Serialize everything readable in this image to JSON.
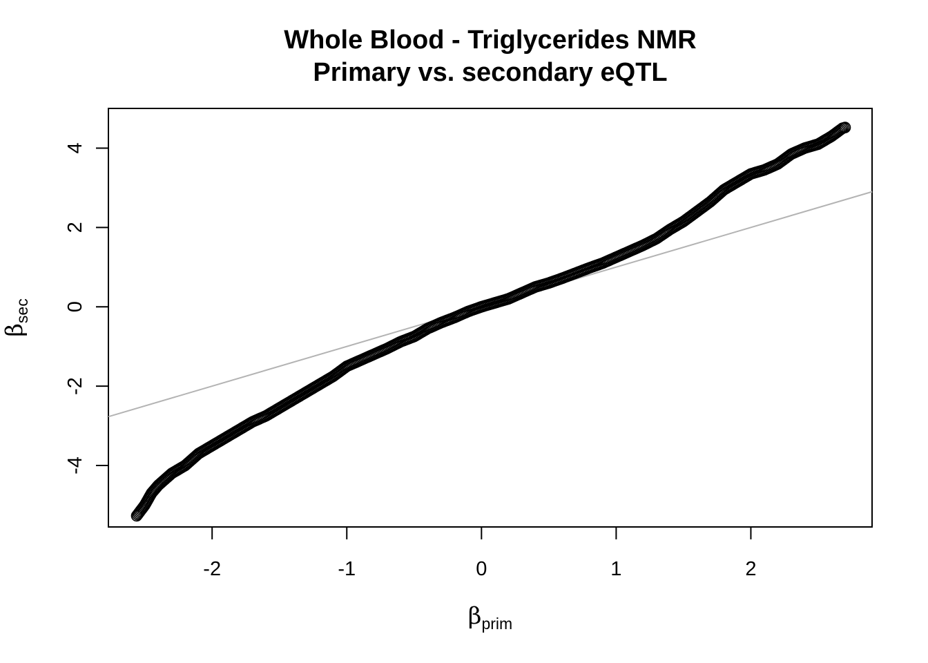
{
  "chart_data": {
    "type": "scatter",
    "title": "Whole Blood - Triglycerides NMR",
    "subtitle": "Primary vs. secondary eQTL",
    "xlabel": {
      "symbol": "β",
      "subscript": "prim"
    },
    "ylabel": {
      "symbol": "β",
      "subscript": "sec"
    },
    "xlim": [
      -2.77,
      2.9
    ],
    "ylim": [
      -5.55,
      5.0
    ],
    "x_ticks": [
      -2,
      -1,
      0,
      1,
      2
    ],
    "x_tick_labels": [
      "-2",
      "-1",
      "0",
      "1",
      "2"
    ],
    "y_ticks": [
      -4,
      -2,
      0,
      2,
      4
    ],
    "y_tick_labels": [
      "-4",
      "-2",
      "0",
      "2",
      "4"
    ],
    "grid": false,
    "legend": "none",
    "reference_line": {
      "intercept": 0,
      "slope": 1,
      "color": "#b3b3b3"
    },
    "marker": {
      "shape": "open-circle",
      "color": "#000000"
    },
    "trend_points": [
      [
        -2.56,
        -5.27
      ],
      [
        -2.5,
        -5.0
      ],
      [
        -2.45,
        -4.7
      ],
      [
        -2.4,
        -4.5
      ],
      [
        -2.3,
        -4.2
      ],
      [
        -2.2,
        -4.0
      ],
      [
        -2.1,
        -3.7
      ],
      [
        -2.0,
        -3.5
      ],
      [
        -1.9,
        -3.3
      ],
      [
        -1.8,
        -3.1
      ],
      [
        -1.7,
        -2.9
      ],
      [
        -1.6,
        -2.75
      ],
      [
        -1.5,
        -2.55
      ],
      [
        -1.4,
        -2.35
      ],
      [
        -1.3,
        -2.15
      ],
      [
        -1.2,
        -1.95
      ],
      [
        -1.1,
        -1.75
      ],
      [
        -1.0,
        -1.5
      ],
      [
        -0.9,
        -1.35
      ],
      [
        -0.8,
        -1.2
      ],
      [
        -0.7,
        -1.05
      ],
      [
        -0.6,
        -0.88
      ],
      [
        -0.5,
        -0.75
      ],
      [
        -0.4,
        -0.55
      ],
      [
        -0.3,
        -0.4
      ],
      [
        -0.2,
        -0.27
      ],
      [
        -0.1,
        -0.12
      ],
      [
        0.0,
        0.0
      ],
      [
        0.1,
        0.1
      ],
      [
        0.2,
        0.2
      ],
      [
        0.3,
        0.35
      ],
      [
        0.4,
        0.5
      ],
      [
        0.5,
        0.6
      ],
      [
        0.6,
        0.72
      ],
      [
        0.7,
        0.85
      ],
      [
        0.8,
        0.98
      ],
      [
        0.9,
        1.1
      ],
      [
        1.0,
        1.25
      ],
      [
        1.1,
        1.4
      ],
      [
        1.2,
        1.55
      ],
      [
        1.3,
        1.72
      ],
      [
        1.4,
        1.95
      ],
      [
        1.5,
        2.15
      ],
      [
        1.6,
        2.4
      ],
      [
        1.7,
        2.65
      ],
      [
        1.8,
        2.95
      ],
      [
        1.9,
        3.15
      ],
      [
        2.0,
        3.35
      ],
      [
        2.1,
        3.45
      ],
      [
        2.2,
        3.6
      ],
      [
        2.3,
        3.85
      ],
      [
        2.4,
        4.0
      ],
      [
        2.5,
        4.1
      ],
      [
        2.6,
        4.3
      ],
      [
        2.68,
        4.5
      ],
      [
        2.7,
        4.52
      ]
    ]
  }
}
